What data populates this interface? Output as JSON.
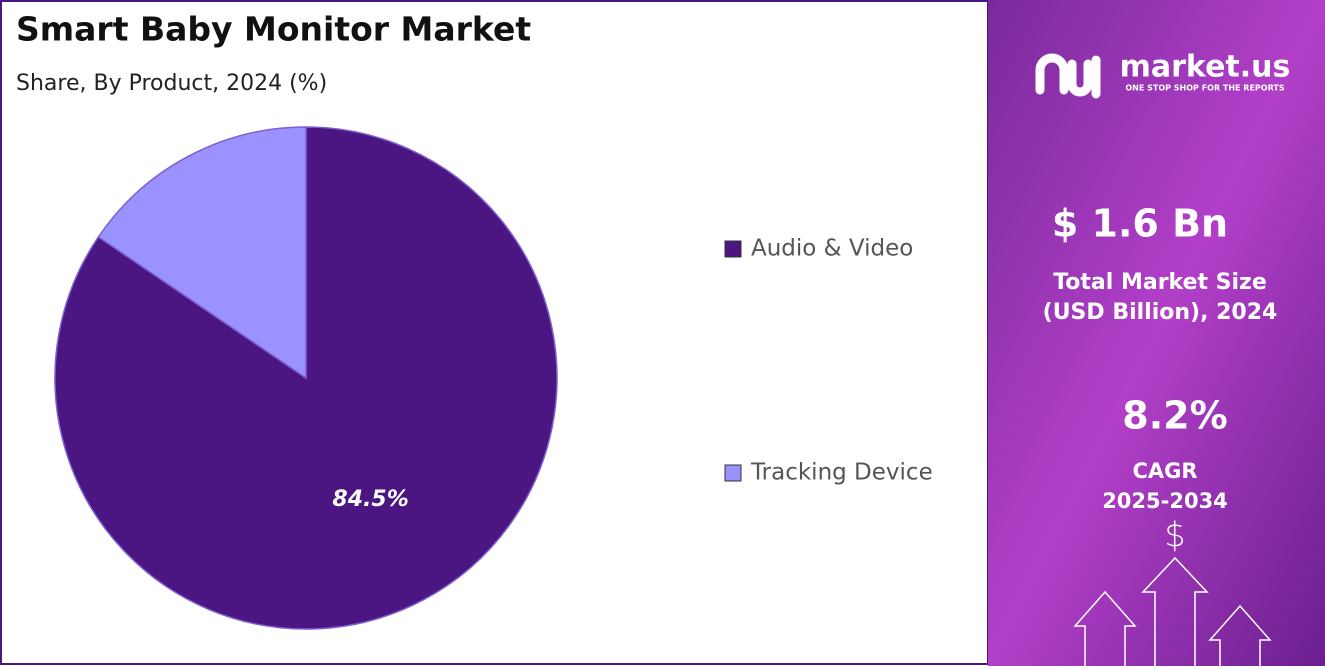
{
  "chart_data": {
    "type": "pie",
    "title": "Smart Baby Monitor Market",
    "subtitle": "Share, By Product, 2024 (%)",
    "categories": [
      "Audio & Video",
      "Tracking Device"
    ],
    "values": [
      84.5,
      15.5
    ],
    "value_labels": [
      "84.5%",
      null
    ],
    "colors": [
      "#4b1681",
      "#9a92ff"
    ]
  },
  "sidebar": {
    "brand": "market.us",
    "tagline": "ONE STOP SHOP FOR THE REPORTS",
    "market_size": "$ 1.6 Bn",
    "market_size_label": [
      "Total Market Size",
      "(USD Billion), 2024"
    ],
    "cagr": "8.2%",
    "cagr_label": [
      "CAGR",
      "2025-2034"
    ],
    "currency_icon": "$"
  }
}
